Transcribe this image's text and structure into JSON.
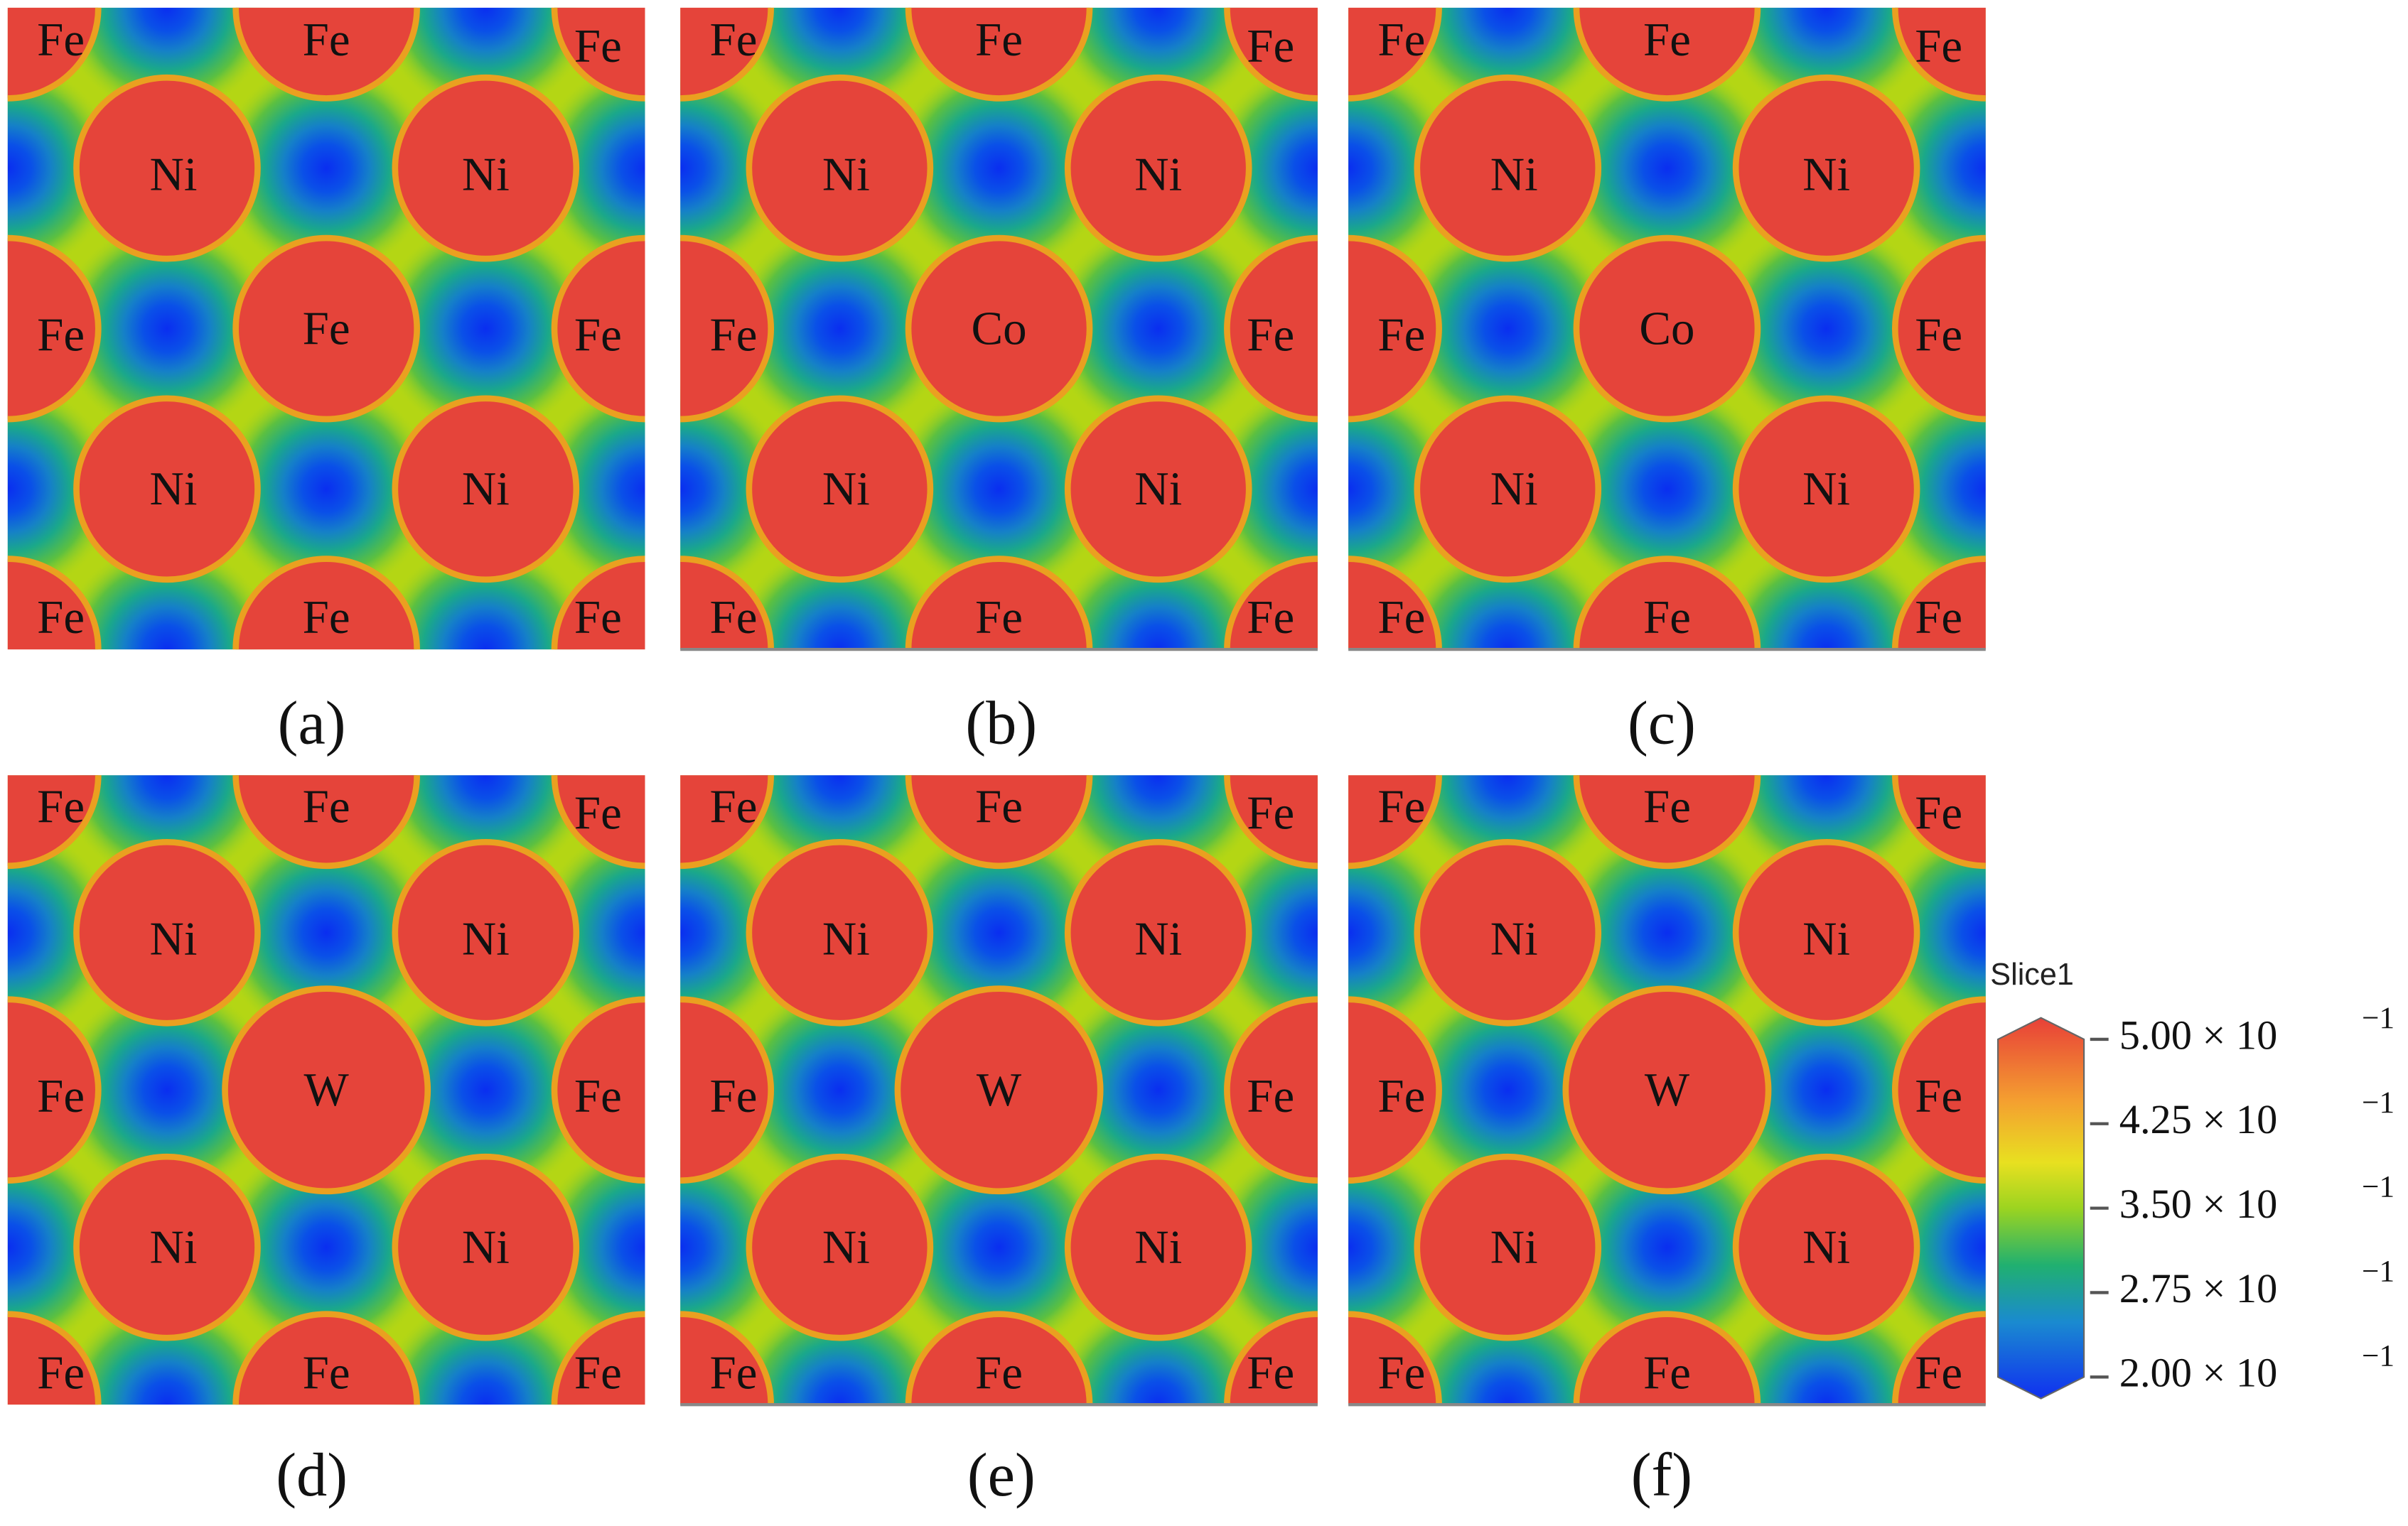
{
  "panels": [
    {
      "caption": "(a)",
      "atoms": [
        "Fe",
        "Fe",
        "Fe",
        "Ni",
        "Ni",
        "Fe",
        "Fe",
        "Fe",
        "Ni",
        "Ni",
        "Fe",
        "Fe",
        "Fe"
      ]
    },
    {
      "caption": "(b)",
      "atoms": [
        "Fe",
        "Fe",
        "Fe",
        "Ni",
        "Ni",
        "Fe",
        "Co",
        "Fe",
        "Ni",
        "Ni",
        "Fe",
        "Fe",
        "Fe"
      ]
    },
    {
      "caption": "(c)",
      "atoms": [
        "Fe",
        "Fe",
        "Fe",
        "Ni",
        "Ni",
        "Fe",
        "Co",
        "Fe",
        "Ni",
        "Ni",
        "Fe",
        "Fe",
        "Fe"
      ]
    },
    {
      "caption": "(d)",
      "atoms": [
        "Fe",
        "Fe",
        "Fe",
        "Ni",
        "Ni",
        "Fe",
        "W",
        "Fe",
        "Ni",
        "Ni",
        "Fe",
        "Fe",
        "Fe"
      ]
    },
    {
      "caption": "(e)",
      "atoms": [
        "Fe",
        "Fe",
        "Fe",
        "Ni",
        "Ni",
        "Fe",
        "W",
        "Fe",
        "Ni",
        "Ni",
        "Fe",
        "Fe",
        "Fe"
      ]
    },
    {
      "caption": "(f)",
      "atoms": [
        "Fe",
        "Fe",
        "Fe",
        "Ni",
        "Ni",
        "Fe",
        "W",
        "Fe",
        "Ni",
        "Ni",
        "Fe",
        "Fe",
        "Fe"
      ]
    }
  ],
  "colorbar": {
    "title": "Slice1",
    "range": [
      0.2,
      0.5
    ],
    "ticks": [
      {
        "value": 0.5,
        "label": "5.00 × 10",
        "exponent": "−1"
      },
      {
        "value": 0.425,
        "label": "4.25 × 10",
        "exponent": "−1"
      },
      {
        "value": 0.35,
        "label": "3.50 × 10",
        "exponent": "−1"
      },
      {
        "value": 0.275,
        "label": "2.75 × 10",
        "exponent": "−1"
      },
      {
        "value": 0.2,
        "label": "2.00 × 10",
        "exponent": "−1"
      }
    ]
  }
}
